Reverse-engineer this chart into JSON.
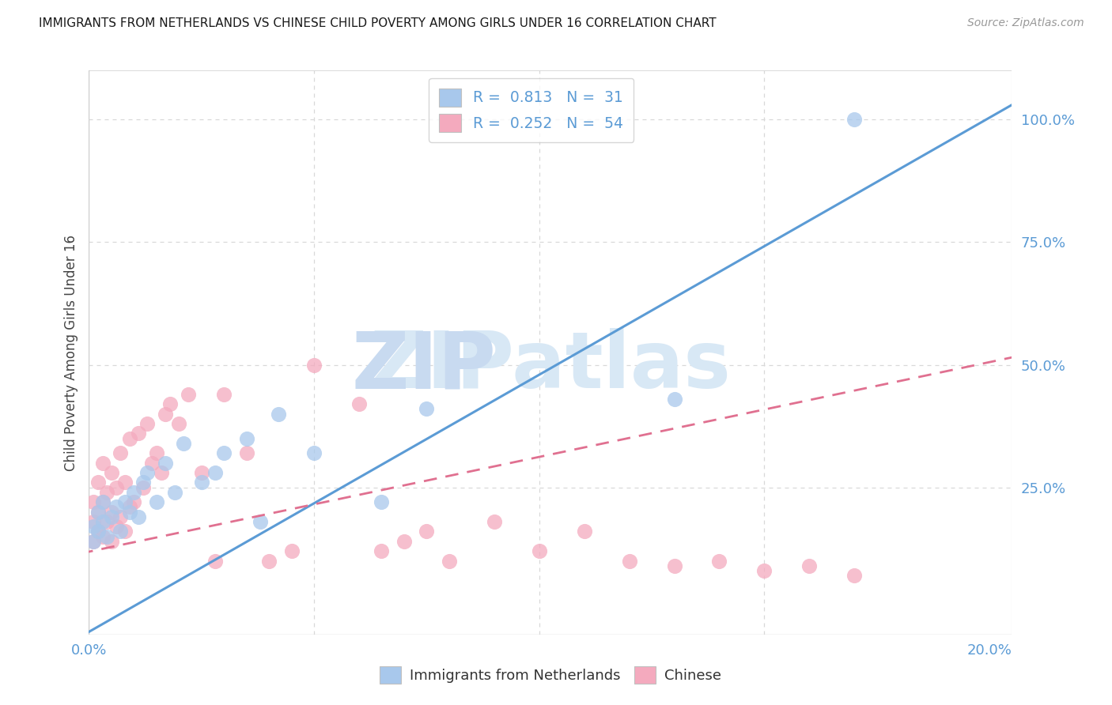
{
  "title": "IMMIGRANTS FROM NETHERLANDS VS CHINESE CHILD POVERTY AMONG GIRLS UNDER 16 CORRELATION CHART",
  "source": "Source: ZipAtlas.com",
  "ylabel": "Child Poverty Among Girls Under 16",
  "xlim": [
    0.0,
    0.205
  ],
  "ylim": [
    -0.05,
    1.1
  ],
  "blue_color": "#a8c8ec",
  "pink_color": "#f4aabe",
  "blue_line_color": "#5b9bd5",
  "pink_line_color": "#e07090",
  "grid_color": "#d8d8d8",
  "axis_label_color": "#5b9bd5",
  "title_color": "#1a1a1a",
  "source_color": "#999999",
  "watermark_zip_color": "#c8daf0",
  "watermark_atlas_color": "#d8e8f5",
  "R1": 0.813,
  "N1": 31,
  "R2": 0.252,
  "N2": 54,
  "blue_scatter_x": [
    0.001,
    0.001,
    0.002,
    0.002,
    0.003,
    0.003,
    0.004,
    0.005,
    0.006,
    0.007,
    0.008,
    0.009,
    0.01,
    0.011,
    0.012,
    0.013,
    0.015,
    0.017,
    0.019,
    0.021,
    0.025,
    0.028,
    0.03,
    0.035,
    0.038,
    0.042,
    0.05,
    0.065,
    0.075,
    0.13,
    0.17
  ],
  "blue_scatter_y": [
    0.14,
    0.17,
    0.16,
    0.2,
    0.18,
    0.22,
    0.15,
    0.19,
    0.21,
    0.16,
    0.22,
    0.2,
    0.24,
    0.19,
    0.26,
    0.28,
    0.22,
    0.3,
    0.24,
    0.34,
    0.26,
    0.28,
    0.32,
    0.35,
    0.18,
    0.4,
    0.32,
    0.22,
    0.41,
    0.43,
    1.0
  ],
  "pink_scatter_x": [
    0.001,
    0.001,
    0.001,
    0.002,
    0.002,
    0.002,
    0.003,
    0.003,
    0.003,
    0.004,
    0.004,
    0.005,
    0.005,
    0.005,
    0.006,
    0.006,
    0.007,
    0.007,
    0.008,
    0.008,
    0.009,
    0.009,
    0.01,
    0.011,
    0.012,
    0.013,
    0.014,
    0.015,
    0.016,
    0.017,
    0.018,
    0.02,
    0.022,
    0.025,
    0.028,
    0.03,
    0.035,
    0.04,
    0.045,
    0.05,
    0.06,
    0.065,
    0.07,
    0.075,
    0.08,
    0.09,
    0.1,
    0.11,
    0.12,
    0.13,
    0.14,
    0.15,
    0.16,
    0.17
  ],
  "pink_scatter_y": [
    0.14,
    0.18,
    0.22,
    0.16,
    0.2,
    0.26,
    0.15,
    0.22,
    0.3,
    0.18,
    0.24,
    0.14,
    0.2,
    0.28,
    0.17,
    0.25,
    0.19,
    0.32,
    0.16,
    0.26,
    0.21,
    0.35,
    0.22,
    0.36,
    0.25,
    0.38,
    0.3,
    0.32,
    0.28,
    0.4,
    0.42,
    0.38,
    0.44,
    0.28,
    0.1,
    0.44,
    0.32,
    0.1,
    0.12,
    0.5,
    0.42,
    0.12,
    0.14,
    0.16,
    0.1,
    0.18,
    0.12,
    0.16,
    0.1,
    0.09,
    0.1,
    0.08,
    0.09,
    0.07
  ]
}
